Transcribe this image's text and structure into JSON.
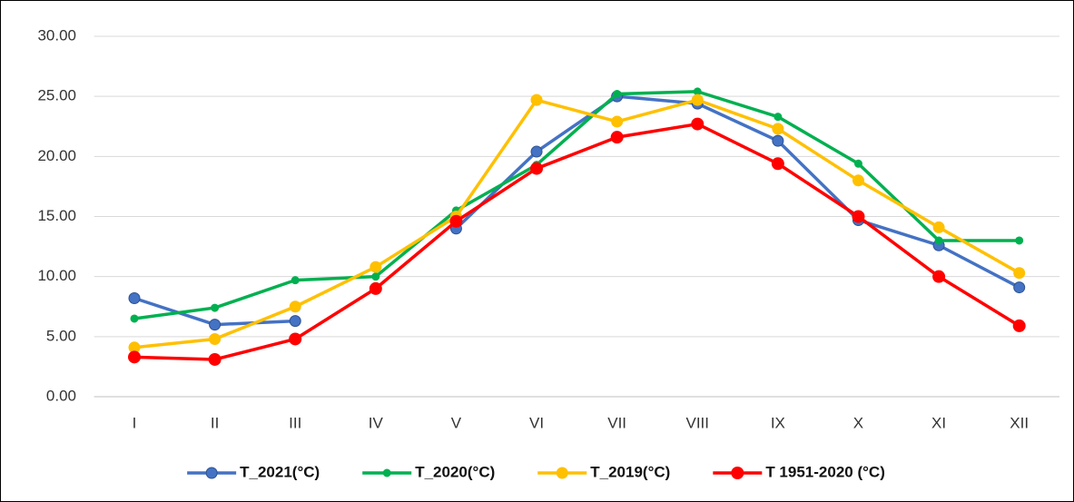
{
  "chart_data": {
    "type": "line",
    "categories": [
      "I",
      "II",
      "III",
      "IV",
      "V",
      "VI",
      "VII",
      "VIII",
      "IX",
      "X",
      "XI",
      "XII"
    ],
    "series": [
      {
        "name": "T_2021(°C)",
        "color": "#4472c4",
        "values": [
          8.2,
          6.0,
          6.3,
          null,
          14.0,
          20.4,
          25.0,
          24.4,
          21.3,
          14.7,
          12.6,
          9.1
        ]
      },
      {
        "name": "T_2020(°C)",
        "color": "#00b050",
        "values": [
          6.5,
          7.4,
          9.7,
          10.0,
          15.5,
          19.3,
          25.2,
          25.4,
          23.3,
          19.4,
          13.0,
          13.0
        ]
      },
      {
        "name": "T_2019(°C)",
        "color": "#ffc000",
        "values": [
          4.1,
          4.8,
          7.5,
          10.8,
          15.0,
          24.7,
          22.9,
          24.7,
          22.3,
          18.0,
          14.1,
          10.3
        ]
      },
      {
        "name": "T 1951-2020 (°C)",
        "color": "#ff0000",
        "values": [
          3.3,
          3.1,
          4.8,
          9.0,
          14.6,
          19.0,
          21.6,
          22.7,
          19.4,
          15.0,
          10.0,
          5.9
        ]
      }
    ],
    "ylim": [
      0,
      30
    ],
    "yticks": [
      {
        "value": 0,
        "label": "0.00"
      },
      {
        "value": 5,
        "label": "5.00"
      },
      {
        "value": 10,
        "label": "10.00"
      },
      {
        "value": 15,
        "label": "15.00"
      },
      {
        "value": 20,
        "label": "20.00"
      },
      {
        "value": 25,
        "label": "25.00"
      },
      {
        "value": 30,
        "label": "30.00"
      }
    ],
    "grid": true,
    "legend": "bottom"
  }
}
